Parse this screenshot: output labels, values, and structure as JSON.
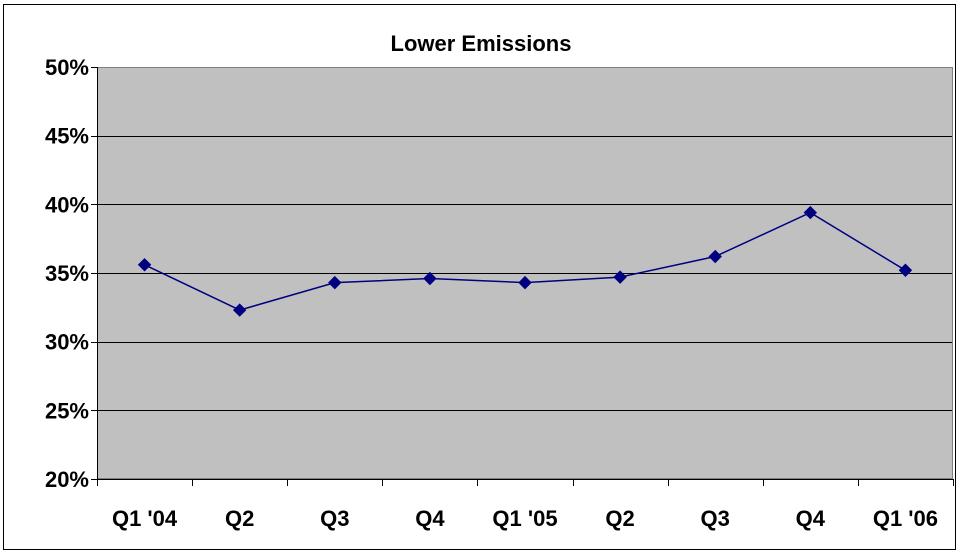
{
  "chart_data": {
    "type": "line",
    "title": "Lower Emissions",
    "xlabel": "",
    "ylabel": "",
    "categories": [
      "Q1 '04",
      "Q2",
      "Q3",
      "Q4",
      "Q1 '05",
      "Q2",
      "Q3",
      "Q4",
      "Q1 '06"
    ],
    "series": [
      {
        "values": [
          35.6,
          32.3,
          34.3,
          34.6,
          34.3,
          34.7,
          36.2,
          39.4,
          35.2
        ]
      }
    ],
    "ylim": [
      20,
      50
    ],
    "y_ticks": [
      20,
      25,
      30,
      35,
      40,
      45,
      50
    ],
    "y_tick_labels": [
      "20%",
      "25%",
      "30%",
      "35%",
      "40%",
      "45%",
      "50%"
    ],
    "grid": true,
    "legend": "none",
    "colors": {
      "plot_background": "#c0c0c0",
      "line": "#000080",
      "marker": "#000080",
      "gridline": "#000000"
    }
  }
}
